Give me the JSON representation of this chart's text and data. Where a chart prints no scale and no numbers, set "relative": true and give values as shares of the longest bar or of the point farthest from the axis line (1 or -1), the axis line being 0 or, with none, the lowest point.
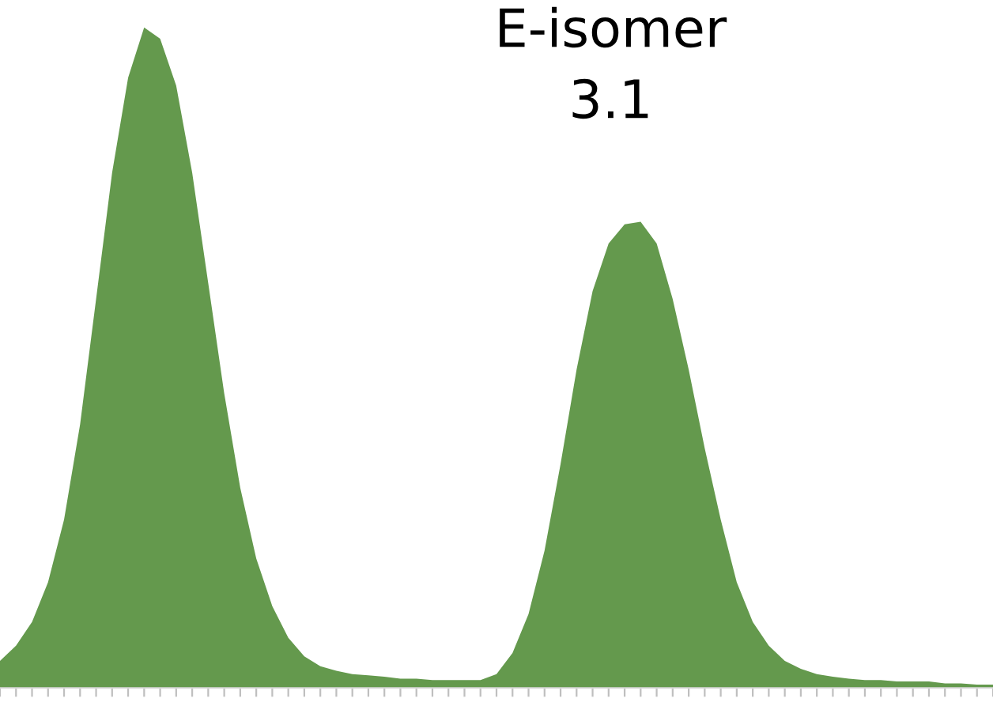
{
  "chart_data": {
    "type": "area",
    "relative": true,
    "color": "#64994d",
    "categories": [
      null,
      null,
      null,
      null,
      null,
      null,
      null,
      null,
      null,
      null,
      null,
      null,
      null,
      null,
      null,
      null,
      null,
      null,
      null,
      null,
      null,
      null,
      null,
      null,
      null,
      null,
      null,
      null,
      null,
      null,
      null,
      null,
      null,
      null,
      null,
      null,
      null,
      null,
      null,
      null,
      null,
      null,
      null,
      null,
      null,
      null,
      null,
      null,
      null,
      null,
      null,
      null,
      null,
      null,
      null,
      null,
      null,
      null,
      null,
      null,
      null,
      null,
      null
    ],
    "values": [
      0.041,
      0.064,
      0.1,
      0.16,
      0.255,
      0.399,
      0.589,
      0.78,
      0.924,
      1.0,
      0.983,
      0.912,
      0.78,
      0.613,
      0.446,
      0.303,
      0.196,
      0.124,
      0.076,
      0.048,
      0.033,
      0.026,
      0.021,
      0.019,
      0.017,
      0.014,
      0.014,
      0.012,
      0.012,
      0.012,
      0.012,
      0.021,
      0.053,
      0.112,
      0.208,
      0.339,
      0.482,
      0.601,
      0.673,
      0.702,
      0.706,
      0.673,
      0.589,
      0.482,
      0.363,
      0.255,
      0.16,
      0.1,
      0.064,
      0.041,
      0.029,
      0.021,
      0.017,
      0.014,
      0.012,
      0.012,
      0.01,
      0.01,
      0.01,
      0.007,
      0.007,
      0.005,
      0.005
    ],
    "annotations": [
      "E-isomer\n3.1"
    ]
  }
}
